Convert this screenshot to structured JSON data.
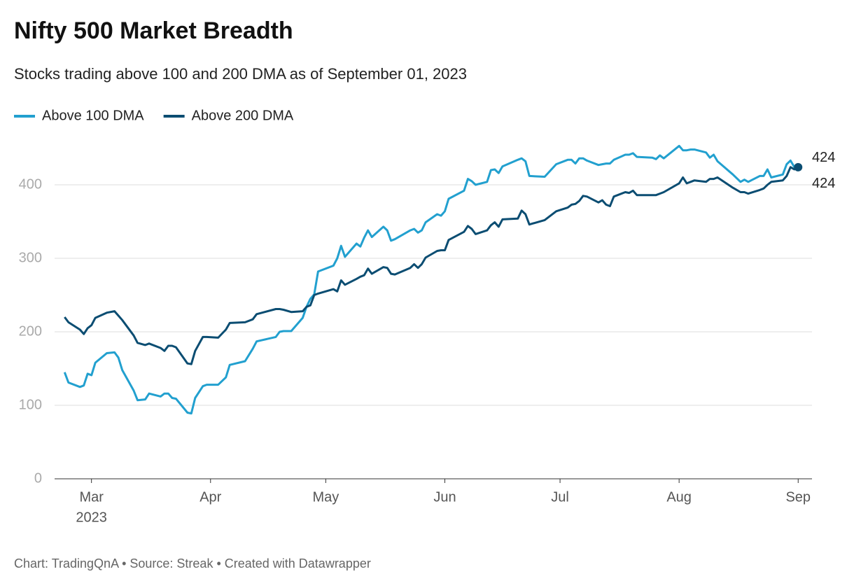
{
  "chart_data": {
    "type": "line",
    "title": "Nifty 500 Market Breadth",
    "subtitle": "Stocks trading above 100 and 200 DMA as of September 01, 2023",
    "footer": "Chart: TradingQnA • Source: Streak • Created with Datawrapper",
    "x_year_label": "2023",
    "x": [
      53,
      54,
      57,
      58,
      59,
      60,
      61,
      64,
      66,
      67,
      68,
      71,
      72,
      74,
      75,
      78,
      79,
      80,
      81,
      82,
      85,
      86,
      87,
      89,
      90,
      93,
      95,
      96,
      100,
      102,
      103,
      108,
      109,
      110,
      112,
      115,
      116,
      117,
      118,
      119,
      123,
      124,
      125,
      126,
      129,
      130,
      131,
      132,
      133,
      136,
      137,
      138,
      139,
      143,
      144,
      145,
      146,
      147,
      150,
      151,
      152,
      153,
      157,
      158,
      159,
      160,
      163,
      164,
      165,
      166,
      167,
      171,
      172,
      173,
      174,
      178,
      181,
      184,
      185,
      186,
      187,
      188,
      189,
      192,
      193,
      194,
      195,
      196,
      199,
      200,
      201,
      202,
      206,
      207,
      208,
      209,
      213,
      214,
      215,
      216,
      217,
      220,
      221,
      222,
      223,
      227,
      229,
      230,
      231,
      234,
      235,
      236,
      237,
      240,
      241,
      242,
      243,
      244
    ],
    "series": [
      {
        "name": "Above 100 DMA",
        "color": "#22a0cf",
        "values": [
          145,
          131,
          125,
          127,
          143,
          141,
          158,
          171,
          172,
          165,
          148,
          120,
          107,
          108,
          116,
          112,
          116,
          116,
          110,
          109,
          90,
          89,
          110,
          126,
          128,
          128,
          138,
          155,
          160,
          177,
          187,
          193,
          200,
          201,
          201,
          219,
          234,
          245,
          251,
          282,
          290,
          300,
          317,
          302,
          320,
          316,
          328,
          338,
          329,
          343,
          338,
          324,
          326,
          338,
          340,
          335,
          338,
          349,
          360,
          358,
          364,
          381,
          392,
          408,
          405,
          400,
          404,
          420,
          421,
          416,
          425,
          434,
          436,
          432,
          412,
          411,
          428,
          434,
          434,
          429,
          436,
          436,
          433,
          427,
          428,
          429,
          429,
          434,
          441,
          441,
          443,
          438,
          437,
          435,
          440,
          436,
          453,
          447,
          447,
          448,
          448,
          444,
          437,
          441,
          432,
          414,
          404,
          407,
          404,
          412,
          412,
          421,
          410,
          414,
          428,
          433,
          424,
          424
        ]
      },
      {
        "name": "Above 200 DMA",
        "color": "#0b4d72",
        "values": [
          220,
          213,
          203,
          197,
          205,
          209,
          219,
          226,
          228,
          222,
          216,
          195,
          185,
          182,
          184,
          178,
          174,
          181,
          181,
          179,
          157,
          156,
          174,
          193,
          193,
          192,
          203,
          212,
          213,
          217,
          224,
          231,
          231,
          230,
          227,
          228,
          234,
          236,
          250,
          252,
          258,
          255,
          270,
          264,
          272,
          275,
          277,
          286,
          279,
          288,
          287,
          279,
          278,
          287,
          292,
          287,
          292,
          301,
          310,
          311,
          311,
          325,
          336,
          344,
          340,
          333,
          338,
          345,
          349,
          343,
          353,
          354,
          365,
          360,
          346,
          352,
          364,
          369,
          373,
          374,
          378,
          385,
          384,
          376,
          379,
          373,
          371,
          384,
          390,
          389,
          392,
          386,
          386,
          386,
          388,
          390,
          402,
          410,
          402,
          404,
          406,
          404,
          408,
          408,
          410,
          396,
          390,
          390,
          388,
          393,
          395,
          400,
          404,
          406,
          412,
          424,
          421,
          424
        ]
      }
    ],
    "xlim": [
      50.4,
      247.6
    ],
    "xticks": [
      {
        "value": 60,
        "label": "Mar"
      },
      {
        "value": 91,
        "label": "Apr"
      },
      {
        "value": 121,
        "label": "May"
      },
      {
        "value": 152,
        "label": "Jun"
      },
      {
        "value": 182,
        "label": "Jul"
      },
      {
        "value": 213,
        "label": "Aug"
      },
      {
        "value": 244,
        "label": "Sep"
      }
    ],
    "ylim": [
      0,
      461
    ],
    "yticks": [
      0,
      100,
      200,
      300,
      400
    ],
    "grid": true,
    "legend": "top-left"
  }
}
